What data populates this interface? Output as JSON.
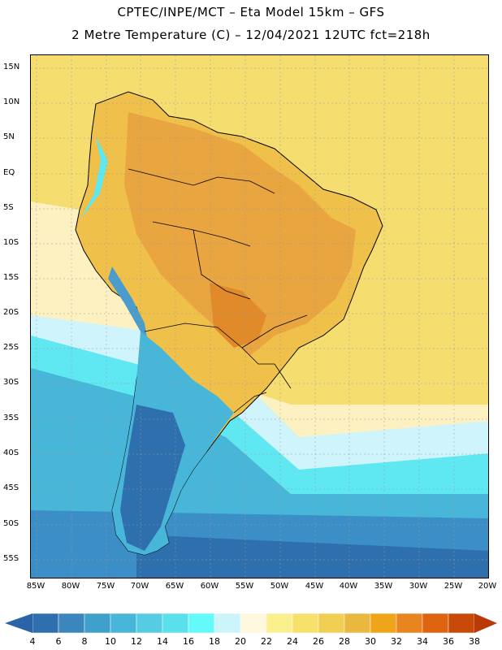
{
  "header": {
    "line1": "CPTEC/INPE/MCT –  Eta Model 15km – GFS",
    "line2": "2 Metre Temperature (C) – 12/04/2021 12UTC fct=218h"
  },
  "map": {
    "lat_labels": [
      "15N",
      "10N",
      "5N",
      "EQ",
      "5S",
      "10S",
      "15S",
      "20S",
      "25S",
      "30S",
      "35S",
      "40S",
      "45S",
      "50S",
      "55S"
    ],
    "lon_labels": [
      "85W",
      "80W",
      "75W",
      "70W",
      "65W",
      "60W",
      "55W",
      "50W",
      "45W",
      "40W",
      "35W",
      "30W",
      "25W",
      "20W"
    ]
  },
  "colorbar": {
    "labels": [
      "4",
      "6",
      "8",
      "10",
      "12",
      "14",
      "16",
      "18",
      "20",
      "22",
      "24",
      "26",
      "28",
      "30",
      "32",
      "34",
      "36",
      "38"
    ],
    "colors": [
      "#2f6faf",
      "#3a86bd",
      "#40a0cc",
      "#48b6d8",
      "#56cce2",
      "#5ae0ea",
      "#64fafa",
      "#ccf4fb",
      "#fef8df",
      "#fbf08e",
      "#f7e16a",
      "#f0cf52",
      "#ebb83f",
      "#f0a41a",
      "#e8851e",
      "#de6410",
      "#c94a08"
    ],
    "left_arrow_color": "#2a64a6",
    "right_arrow_color": "#b83a06"
  },
  "colors": {
    "ocean_deep": "#2e6fae",
    "ocean_mid": "#3b8fc6",
    "ocean_cyan": "#5fe8f2",
    "ocean_light": "#d0f4fb",
    "warm_pale": "#fdf1c2",
    "warm_yellow": "#f6dd70",
    "warm_gold": "#efc04a",
    "land_orange": "#e9a540",
    "land_hot": "#e08a2a",
    "andes_blue": "#4a9ccc"
  }
}
